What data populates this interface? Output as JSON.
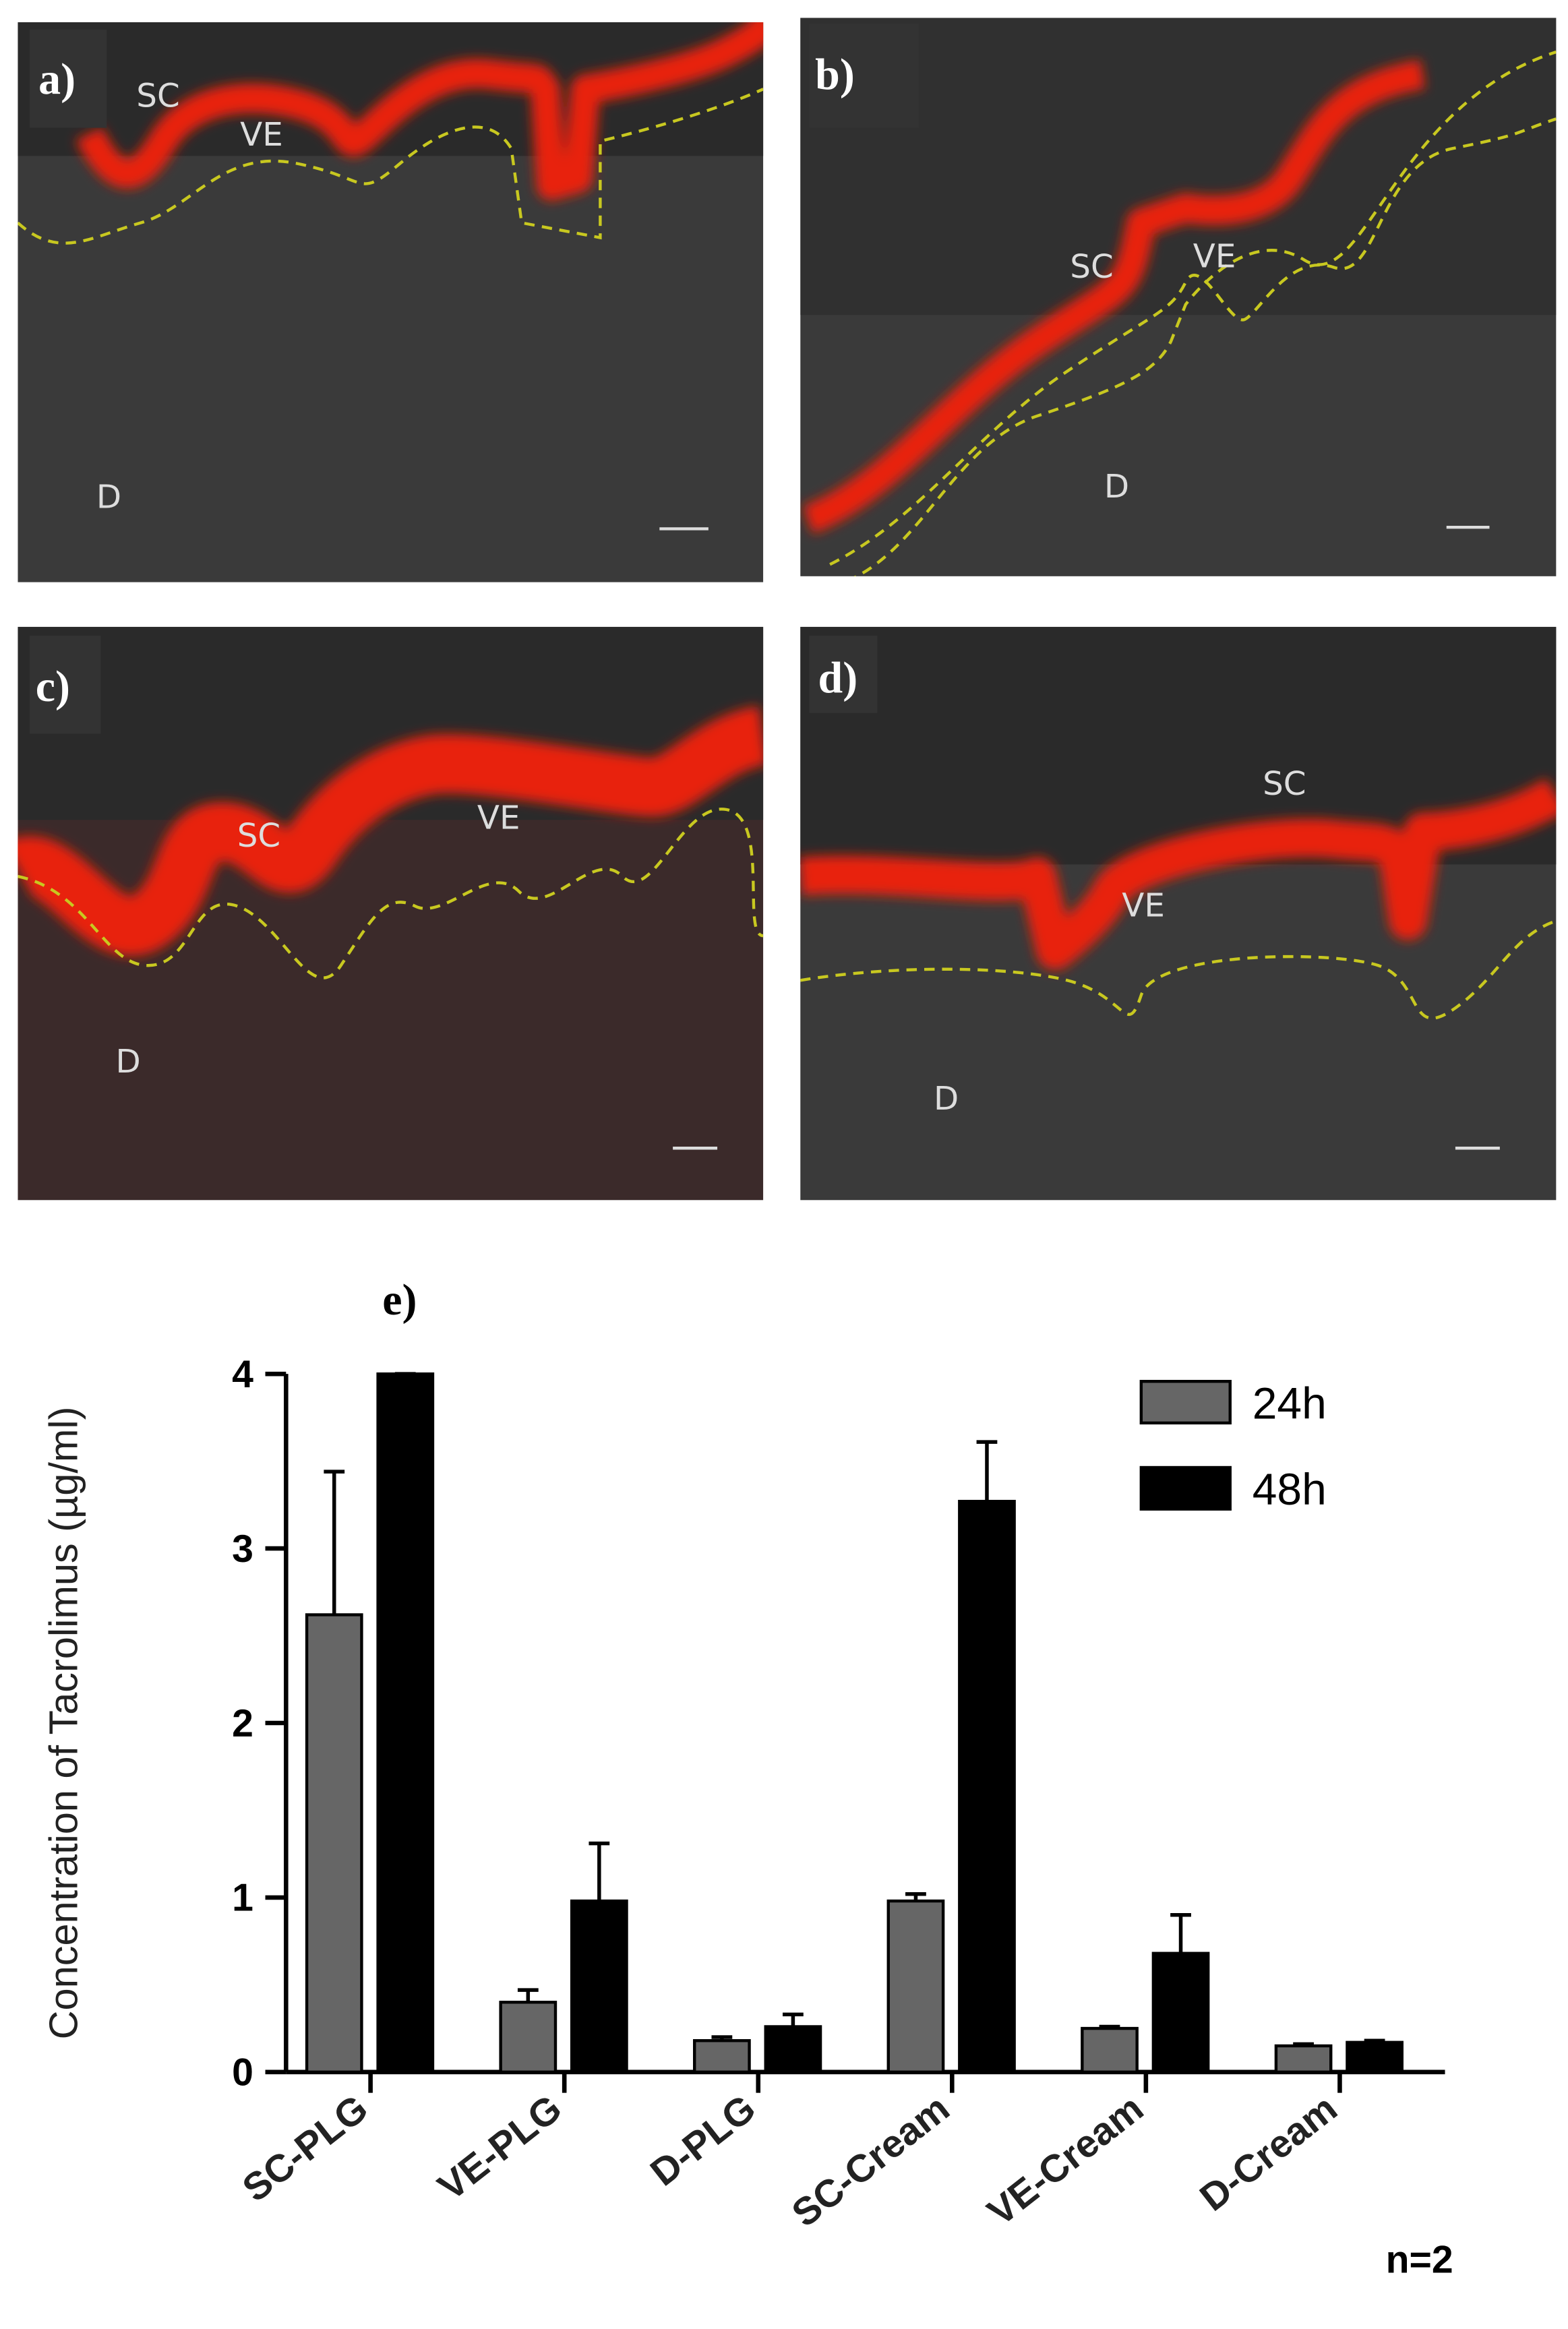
{
  "panels": [
    {
      "label": "a)",
      "tags": [
        "SC",
        "VE",
        "D"
      ]
    },
    {
      "label": "b)",
      "tags": [
        "SC",
        "VE",
        "D"
      ]
    },
    {
      "label": "c)",
      "tags": [
        "SC",
        "VE",
        "D"
      ]
    },
    {
      "label": "d)",
      "tags": [
        "SC",
        "VE",
        "D"
      ]
    }
  ],
  "chart_data": {
    "type": "bar",
    "panel_label": "e)",
    "y_label": "Concentration of Tacrolimus (µg/ml)",
    "categories": [
      "SC-PLG",
      "VE-PLG",
      "D-PLG",
      "SC-Cream",
      "VE-Cream",
      "D-Cream"
    ],
    "series": [
      {
        "name": "24h",
        "color": "#666666",
        "values": [
          2.62,
          0.4,
          0.18,
          0.98,
          0.25,
          0.15
        ],
        "errors": [
          0.82,
          0.07,
          0.02,
          0.04,
          0.01,
          0.01
        ]
      },
      {
        "name": "48h",
        "color": "#000000",
        "values": [
          4.0,
          0.98,
          0.26,
          3.27,
          0.68,
          0.17
        ],
        "errors": [
          0,
          0.33,
          0.07,
          0.34,
          0.22,
          0.01
        ]
      }
    ],
    "ylim": [
      0,
      4
    ],
    "yticks": [
      0,
      1,
      2,
      3,
      4
    ],
    "annotation": "n=2"
  }
}
